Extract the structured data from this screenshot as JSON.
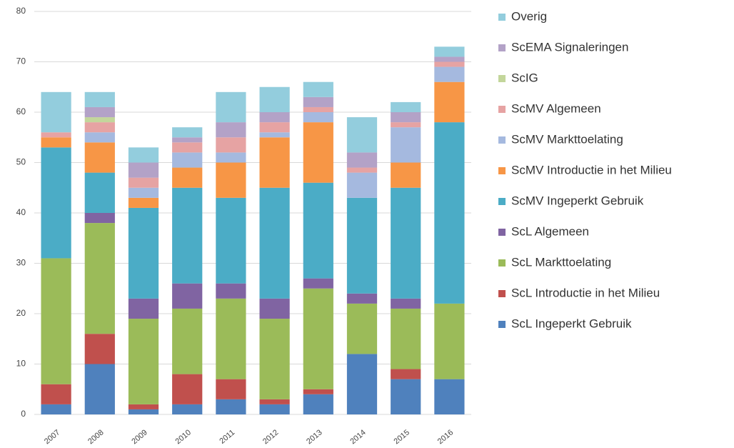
{
  "chart_data": {
    "type": "stacked_bar",
    "categories": [
      "2007",
      "2008",
      "2009",
      "2010",
      "2011",
      "2012",
      "2013",
      "2014",
      "2015",
      "2016"
    ],
    "series": [
      {
        "name": "ScL Ingeperkt Gebruik",
        "color": "#4f81bd",
        "values": [
          2,
          10,
          1,
          2,
          3,
          2,
          4,
          12,
          7,
          7
        ]
      },
      {
        "name": "ScL Introductie in het Milieu",
        "color": "#c0504d",
        "values": [
          4,
          6,
          1,
          6,
          4,
          1,
          1,
          0,
          2,
          0
        ]
      },
      {
        "name": "ScL Markttoelating",
        "color": "#9bbb59",
        "values": [
          25,
          22,
          17,
          13,
          16,
          16,
          20,
          10,
          12,
          15
        ]
      },
      {
        "name": "ScL Algemeen",
        "color": "#8064a2",
        "values": [
          0,
          2,
          4,
          5,
          3,
          4,
          2,
          2,
          2,
          0
        ]
      },
      {
        "name": "ScMV Ingeperkt Gebruik",
        "color": "#4bacc6",
        "values": [
          22,
          8,
          18,
          19,
          17,
          22,
          19,
          19,
          22,
          36
        ]
      },
      {
        "name": "ScMV Introductie in het Milieu",
        "color": "#f79646",
        "values": [
          2,
          6,
          2,
          4,
          7,
          10,
          12,
          0,
          5,
          8
        ]
      },
      {
        "name": "ScMV Markttoelating",
        "color": "#a5b9df",
        "values": [
          0,
          2,
          2,
          3,
          2,
          1,
          2,
          5,
          7,
          3
        ]
      },
      {
        "name": "ScMV Algemeen",
        "color": "#e6a3a3",
        "values": [
          1,
          2,
          2,
          2,
          3,
          2,
          1,
          1,
          1,
          1
        ]
      },
      {
        "name": "ScIG",
        "color": "#c3d69b",
        "values": [
          0,
          1,
          0,
          0,
          0,
          0,
          0,
          0,
          0,
          0
        ]
      },
      {
        "name": "ScEMA Signaleringen",
        "color": "#b3a2c7",
        "values": [
          0,
          2,
          3,
          1,
          3,
          2,
          2,
          3,
          2,
          1
        ]
      },
      {
        "name": "Overig",
        "color": "#93cddd",
        "values": [
          8,
          3,
          3,
          2,
          6,
          5,
          3,
          7,
          2,
          2
        ]
      }
    ],
    "ylim": [
      0,
      80
    ],
    "yticks": [
      0,
      10,
      20,
      30,
      40,
      50,
      60,
      70,
      80
    ],
    "grid": true
  }
}
